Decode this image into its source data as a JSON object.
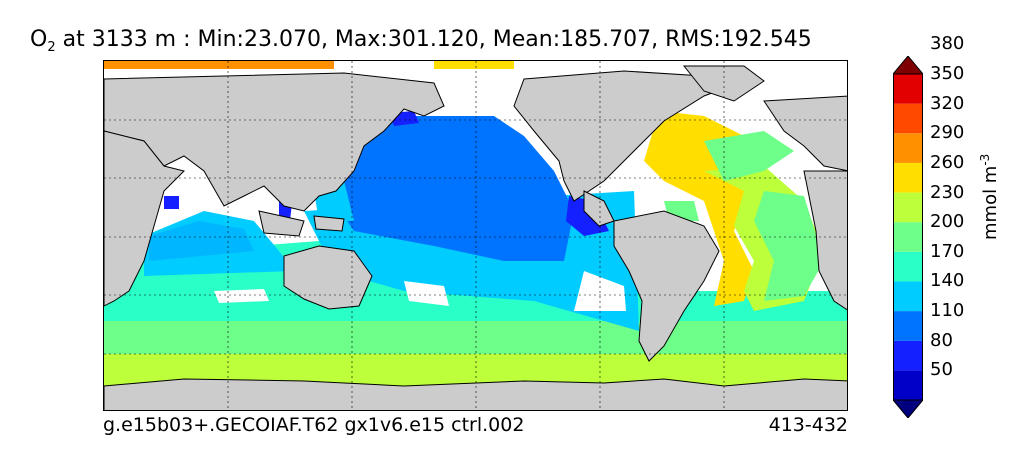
{
  "title": {
    "species": "O",
    "subscript": "2",
    "rest": " at 3133 m : Min:23.070, Max:301.120, Mean:185.707, RMS:192.545"
  },
  "footer": {
    "case": "g.e15b03+.GECOIAF.T62 gx1v6.e15 ctrl.002",
    "years": "413-432"
  },
  "colorbar": {
    "units_prefix": "mmol m",
    "units_exponent": "-3",
    "levels": [
      "50",
      "80",
      "110",
      "140",
      "170",
      "200",
      "230",
      "260",
      "290",
      "320",
      "350",
      "380"
    ],
    "colors": [
      "#00007f",
      "#0000c8",
      "#1420ff",
      "#0074ff",
      "#00ccff",
      "#29ffc6",
      "#6dff8a",
      "#bcff3a",
      "#ffde00",
      "#ff9100",
      "#ff4800",
      "#e30000",
      "#7f0000"
    ]
  },
  "map": {
    "land_color": "#cccccc",
    "missing_color": "#ffffff"
  }
}
